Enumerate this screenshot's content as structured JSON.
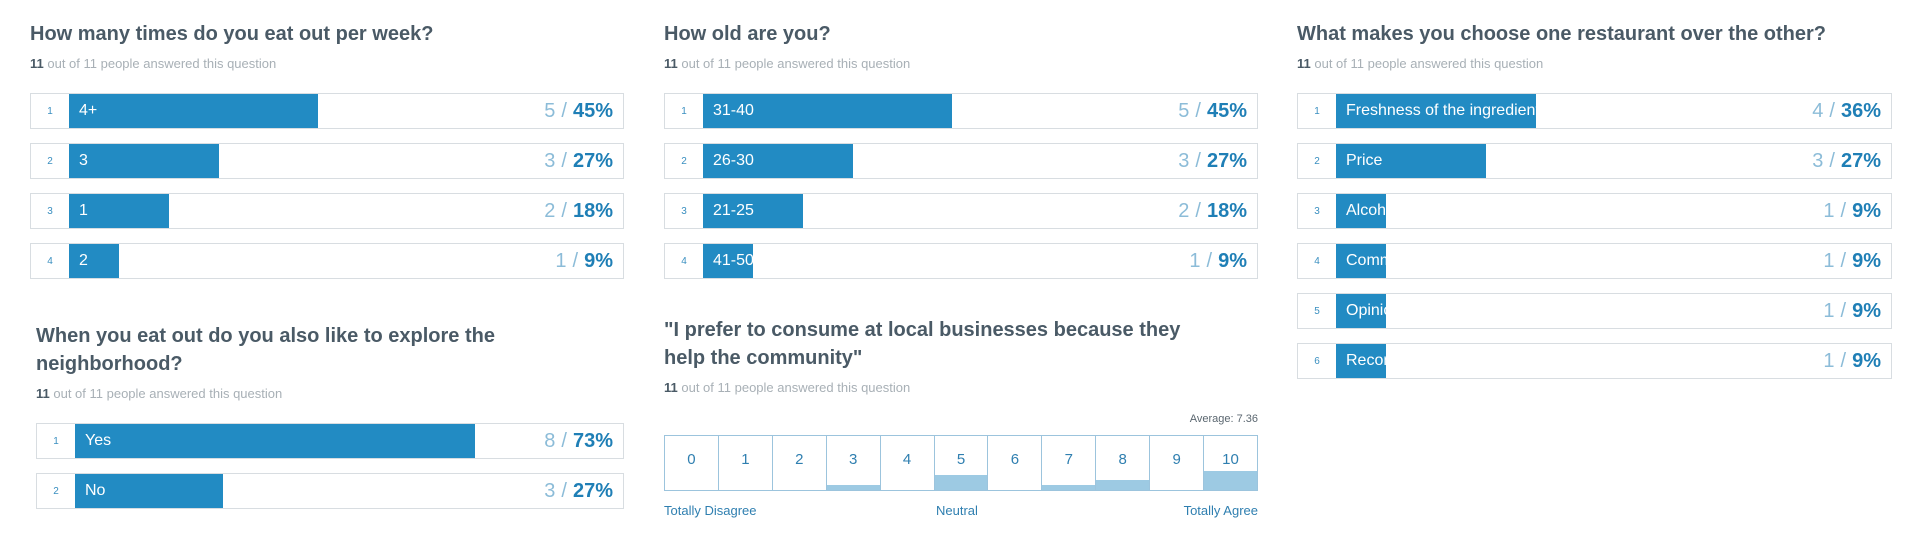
{
  "questions": {
    "q1": {
      "title": "How many times do you eat out per week?",
      "answered": "11",
      "answered_text": " out of 11 people answered this question",
      "rows": [
        {
          "rank": "1",
          "label": "4+",
          "count": "5",
          "pct": "45%",
          "value": 45
        },
        {
          "rank": "2",
          "label": "3",
          "count": "3",
          "pct": "27%",
          "value": 27
        },
        {
          "rank": "3",
          "label": "1",
          "count": "2",
          "pct": "18%",
          "value": 18
        },
        {
          "rank": "4",
          "label": "2",
          "count": "1",
          "pct": "9%",
          "value": 9
        }
      ]
    },
    "q2": {
      "title": "How old are you?",
      "answered": "11",
      "answered_text": " out of 11 people answered this question",
      "rows": [
        {
          "rank": "1",
          "label": "31-40",
          "count": "5",
          "pct": "45%",
          "value": 45
        },
        {
          "rank": "2",
          "label": "26-30",
          "count": "3",
          "pct": "27%",
          "value": 27
        },
        {
          "rank": "3",
          "label": "21-25",
          "count": "2",
          "pct": "18%",
          "value": 18
        },
        {
          "rank": "4",
          "label": "41-50",
          "count": "1",
          "pct": "9%",
          "value": 9
        }
      ]
    },
    "q3": {
      "title": "What makes you choose one restaurant over the other?",
      "answered": "11",
      "answered_text": " out of 11 people answered this question",
      "rows": [
        {
          "rank": "1",
          "label": "Freshness of the ingredients",
          "count": "4",
          "pct": "36%",
          "value": 36
        },
        {
          "rank": "2",
          "label": "Price",
          "count": "3",
          "pct": "27%",
          "value": 27
        },
        {
          "rank": "3",
          "label": "Alcoholic choices",
          "count": "1",
          "pct": "9%",
          "value": 9
        },
        {
          "rank": "4",
          "label": "Commute time",
          "count": "1",
          "pct": "9%",
          "value": 9
        },
        {
          "rank": "5",
          "label": "Opinion from friends or family",
          "count": "1",
          "pct": "9%",
          "value": 9
        },
        {
          "rank": "6",
          "label": "Recommendation from friends or family",
          "count": "1",
          "pct": "9%",
          "value": 9
        }
      ]
    },
    "q4": {
      "title": "When you eat out do you also like to explore the neighborhood?",
      "answered": "11",
      "answered_text": " out of 11 people answered this question",
      "rows": [
        {
          "rank": "1",
          "label": "Yes",
          "count": "8",
          "pct": "73%",
          "value": 73
        },
        {
          "rank": "2",
          "label": "No",
          "count": "3",
          "pct": "27%",
          "value": 27
        }
      ]
    },
    "q5": {
      "title": "\"I prefer to consume at local businesses because they help the community\"",
      "answered": "11",
      "answered_text": " out of 11 people answered this question",
      "average": "Average: 7.36",
      "scale_left": "Totally Disagree",
      "scale_mid": "Neutral",
      "scale_right": "Totally Agree",
      "scale": [
        {
          "label": "0",
          "value": 0
        },
        {
          "label": "1",
          "value": 0
        },
        {
          "label": "2",
          "value": 0
        },
        {
          "label": "3",
          "value": 9
        },
        {
          "label": "4",
          "value": 0
        },
        {
          "label": "5",
          "value": 27
        },
        {
          "label": "6",
          "value": 0
        },
        {
          "label": "7",
          "value": 9
        },
        {
          "label": "8",
          "value": 18
        },
        {
          "label": "9",
          "value": 0
        },
        {
          "label": "10",
          "value": 36
        }
      ]
    }
  },
  "chart_data": [
    {
      "type": "bar",
      "title": "How many times do you eat out per week?",
      "categories": [
        "4+",
        "3",
        "1",
        "2"
      ],
      "values": [
        45,
        27,
        18,
        9
      ],
      "counts": [
        5,
        3,
        2,
        1
      ],
      "ylim": [
        0,
        100
      ]
    },
    {
      "type": "bar",
      "title": "How old are you?",
      "categories": [
        "31-40",
        "26-30",
        "21-25",
        "41-50"
      ],
      "values": [
        45,
        27,
        18,
        9
      ],
      "counts": [
        5,
        3,
        2,
        1
      ],
      "ylim": [
        0,
        100
      ]
    },
    {
      "type": "bar",
      "title": "What makes you choose one restaurant over the other?",
      "categories": [
        "Freshness of the ingredients",
        "Price",
        "Alcoholic choices",
        "Commute time",
        "Opinion from friends or family",
        "Recommendation from friends or family"
      ],
      "values": [
        36,
        27,
        9,
        9,
        9,
        9
      ],
      "counts": [
        4,
        3,
        1,
        1,
        1,
        1
      ],
      "ylim": [
        0,
        100
      ]
    },
    {
      "type": "bar",
      "title": "When you eat out do you also like to explore the neighborhood?",
      "categories": [
        "Yes",
        "No"
      ],
      "values": [
        73,
        27
      ],
      "counts": [
        8,
        3
      ],
      "ylim": [
        0,
        100
      ]
    },
    {
      "type": "bar",
      "title": "\"I prefer to consume at local businesses because they help the community\"",
      "categories": [
        "0",
        "1",
        "2",
        "3",
        "4",
        "5",
        "6",
        "7",
        "8",
        "9",
        "10"
      ],
      "values": [
        0,
        0,
        0,
        9,
        0,
        27,
        0,
        9,
        18,
        0,
        36
      ],
      "average": 7.36
    }
  ],
  "colors": {
    "bar": "#228bc3",
    "scale_fill": "#9dcae3",
    "text": "#4a5a66"
  }
}
